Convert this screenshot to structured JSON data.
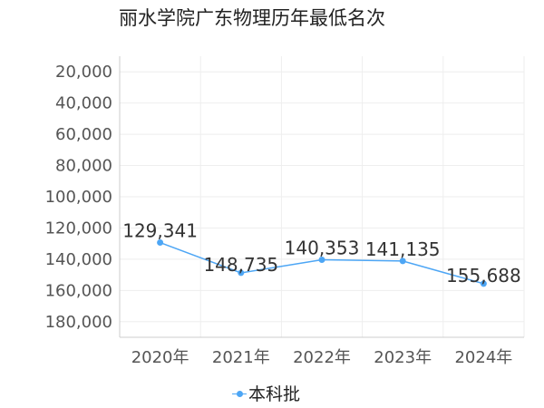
{
  "chart_data": {
    "type": "line",
    "title": "丽水学院广东物理历年最低名次",
    "categories": [
      "2020年",
      "2021年",
      "2022年",
      "2023年",
      "2024年"
    ],
    "series": [
      {
        "name": "本科批",
        "values": [
          129341,
          148735,
          140353,
          141135,
          155688
        ],
        "labels": [
          "129,341",
          "148,735",
          "140,353",
          "141,135",
          "155,688"
        ]
      }
    ],
    "y_ticks": [
      20000,
      40000,
      60000,
      80000,
      100000,
      120000,
      140000,
      160000,
      180000
    ],
    "y_tick_labels": [
      "20,000",
      "40,000",
      "60,000",
      "80,000",
      "100,000",
      "120,000",
      "140,000",
      "160,000",
      "180,000"
    ],
    "ylim": [
      10000,
      190000
    ],
    "y_reversed": true,
    "grid": true,
    "legend_position": "bottom-center",
    "colors": {
      "series": "#4da6f5",
      "grid": "#eeeeee",
      "axis": "#cccccc"
    }
  }
}
